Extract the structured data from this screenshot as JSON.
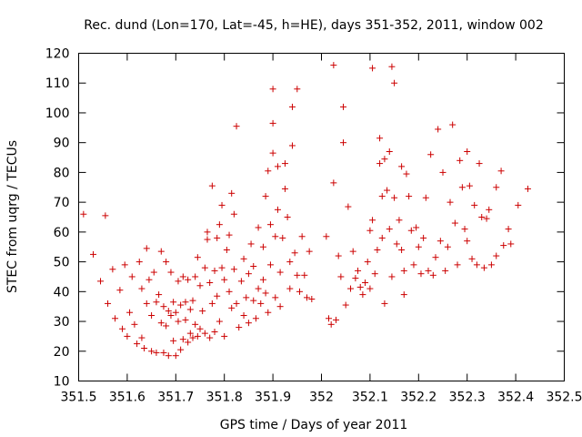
{
  "chart_data": {
    "type": "scatter",
    "title": "Rec. dund (Lon=170, Lat=-45, h=HE), days 351-352, 2011, window 002",
    "xlabel": "GPS time / Days of year 2011",
    "ylabel": "STEC from uqrg / TECUs",
    "xlim": [
      351.5,
      352.5
    ],
    "ylim": [
      10,
      120
    ],
    "xticks": [
      "351.5",
      "351.6",
      "351.7",
      "351.8",
      "351.9",
      "352",
      "352.1",
      "352.2",
      "352.3",
      "352.4",
      "352.5"
    ],
    "yticks": [
      "10",
      "20",
      "30",
      "40",
      "50",
      "60",
      "70",
      "80",
      "90",
      "100",
      "110",
      "120"
    ],
    "marker": "+",
    "color": "#cc0000",
    "grid": false,
    "legend": "none",
    "points": [
      [
        351.51,
        66
      ],
      [
        351.53,
        52.5
      ],
      [
        351.545,
        43.5
      ],
      [
        351.555,
        65.5
      ],
      [
        351.56,
        36
      ],
      [
        351.57,
        47.5
      ],
      [
        351.575,
        31
      ],
      [
        351.585,
        40.5
      ],
      [
        351.59,
        27.5
      ],
      [
        351.595,
        49
      ],
      [
        351.6,
        25
      ],
      [
        351.605,
        33
      ],
      [
        351.61,
        45
      ],
      [
        351.615,
        29
      ],
      [
        351.62,
        22.5
      ],
      [
        351.625,
        50
      ],
      [
        351.63,
        24.5
      ],
      [
        351.63,
        41
      ],
      [
        351.635,
        21
      ],
      [
        351.64,
        36
      ],
      [
        351.64,
        54.5
      ],
      [
        351.645,
        44
      ],
      [
        351.65,
        20
      ],
      [
        351.65,
        32
      ],
      [
        351.655,
        46.5
      ],
      [
        351.66,
        19.5
      ],
      [
        351.66,
        36.5
      ],
      [
        351.665,
        39
      ],
      [
        351.67,
        29.5
      ],
      [
        351.67,
        53.5
      ],
      [
        351.675,
        19.5
      ],
      [
        351.675,
        35
      ],
      [
        351.68,
        28.5
      ],
      [
        351.68,
        50
      ],
      [
        351.685,
        18.5
      ],
      [
        351.685,
        33.5
      ],
      [
        351.69,
        32
      ],
      [
        351.69,
        46.5
      ],
      [
        351.695,
        23.5
      ],
      [
        351.695,
        36.5
      ],
      [
        351.7,
        18.5
      ],
      [
        351.7,
        33
      ],
      [
        351.705,
        43.5
      ],
      [
        351.705,
        30
      ],
      [
        351.71,
        20.5
      ],
      [
        351.71,
        35.5
      ],
      [
        351.715,
        24
      ],
      [
        351.715,
        45
      ],
      [
        351.72,
        30.5
      ],
      [
        351.72,
        36.5
      ],
      [
        351.725,
        23
      ],
      [
        351.725,
        44
      ],
      [
        351.73,
        26
      ],
      [
        351.73,
        34
      ],
      [
        351.735,
        24.5
      ],
      [
        351.735,
        37
      ],
      [
        351.74,
        29
      ],
      [
        351.74,
        45
      ],
      [
        351.745,
        25
      ],
      [
        351.745,
        51.5
      ],
      [
        351.75,
        27.5
      ],
      [
        351.75,
        42
      ],
      [
        351.755,
        33.5
      ],
      [
        351.76,
        26
      ],
      [
        351.76,
        48
      ],
      [
        351.765,
        60
      ],
      [
        351.765,
        57.5
      ],
      [
        351.77,
        24.5
      ],
      [
        351.77,
        43
      ],
      [
        351.775,
        36
      ],
      [
        351.775,
        75.5
      ],
      [
        351.78,
        26.5
      ],
      [
        351.78,
        47
      ],
      [
        351.785,
        38.5
      ],
      [
        351.785,
        58
      ],
      [
        351.79,
        30
      ],
      [
        351.79,
        62.5
      ],
      [
        351.795,
        48
      ],
      [
        351.795,
        69
      ],
      [
        351.8,
        44
      ],
      [
        351.8,
        25
      ],
      [
        351.805,
        54
      ],
      [
        351.81,
        40
      ],
      [
        351.81,
        59
      ],
      [
        351.815,
        34.5
      ],
      [
        351.815,
        73
      ],
      [
        351.82,
        47.5
      ],
      [
        351.82,
        66
      ],
      [
        351.825,
        95.5
      ],
      [
        351.825,
        36
      ],
      [
        351.83,
        28
      ],
      [
        351.835,
        43.5
      ],
      [
        351.84,
        51
      ],
      [
        351.84,
        32
      ],
      [
        351.845,
        38
      ],
      [
        351.85,
        46
      ],
      [
        351.85,
        29.5
      ],
      [
        351.855,
        56
      ],
      [
        351.86,
        37
      ],
      [
        351.86,
        48.5
      ],
      [
        351.865,
        31
      ],
      [
        351.87,
        41
      ],
      [
        351.87,
        61.5
      ],
      [
        351.875,
        36
      ],
      [
        351.88,
        44
      ],
      [
        351.88,
        55
      ],
      [
        351.885,
        72
      ],
      [
        351.885,
        39.5
      ],
      [
        351.89,
        33
      ],
      [
        351.89,
        80.5
      ],
      [
        351.895,
        62.5
      ],
      [
        351.895,
        49
      ],
      [
        351.9,
        108
      ],
      [
        351.9,
        96.5
      ],
      [
        351.9,
        86.5
      ],
      [
        351.905,
        58.5
      ],
      [
        351.905,
        38
      ],
      [
        351.91,
        67.5
      ],
      [
        351.91,
        82
      ],
      [
        351.915,
        46.5
      ],
      [
        351.915,
        35
      ],
      [
        351.92,
        58
      ],
      [
        351.925,
        83
      ],
      [
        351.925,
        74.5
      ],
      [
        351.93,
        65
      ],
      [
        351.935,
        50
      ],
      [
        351.935,
        41
      ],
      [
        351.94,
        102
      ],
      [
        351.94,
        89
      ],
      [
        351.945,
        53
      ],
      [
        351.95,
        108
      ],
      [
        351.95,
        45.5
      ],
      [
        351.955,
        40
      ],
      [
        351.96,
        58.5
      ],
      [
        351.965,
        45.5
      ],
      [
        351.97,
        38
      ],
      [
        351.975,
        53.5
      ],
      [
        351.98,
        37.5
      ],
      [
        352.01,
        58.5
      ],
      [
        352.015,
        31
      ],
      [
        352.02,
        29
      ],
      [
        352.025,
        116
      ],
      [
        352.025,
        76.5
      ],
      [
        352.03,
        30.5
      ],
      [
        352.035,
        52
      ],
      [
        352.04,
        45
      ],
      [
        352.045,
        102
      ],
      [
        352.045,
        90
      ],
      [
        352.05,
        35.5
      ],
      [
        352.055,
        68.5
      ],
      [
        352.06,
        41
      ],
      [
        352.065,
        53.5
      ],
      [
        352.07,
        44.5
      ],
      [
        352.075,
        47
      ],
      [
        352.08,
        41.5
      ],
      [
        352.085,
        39
      ],
      [
        352.09,
        43
      ],
      [
        352.095,
        50
      ],
      [
        352.1,
        41
      ],
      [
        352.1,
        60.5
      ],
      [
        352.105,
        115
      ],
      [
        352.105,
        64
      ],
      [
        352.11,
        46
      ],
      [
        352.115,
        54
      ],
      [
        352.12,
        91.5
      ],
      [
        352.12,
        83
      ],
      [
        352.125,
        72
      ],
      [
        352.125,
        58
      ],
      [
        352.13,
        84.5
      ],
      [
        352.13,
        36
      ],
      [
        352.135,
        74
      ],
      [
        352.14,
        61
      ],
      [
        352.14,
        87
      ],
      [
        352.145,
        115.5
      ],
      [
        352.145,
        45
      ],
      [
        352.15,
        110
      ],
      [
        352.15,
        71.5
      ],
      [
        352.155,
        56
      ],
      [
        352.16,
        64
      ],
      [
        352.165,
        82
      ],
      [
        352.165,
        54
      ],
      [
        352.17,
        47
      ],
      [
        352.17,
        39
      ],
      [
        352.175,
        79.5
      ],
      [
        352.18,
        72
      ],
      [
        352.185,
        60.5
      ],
      [
        352.19,
        49
      ],
      [
        352.195,
        61.5
      ],
      [
        352.2,
        55
      ],
      [
        352.205,
        46
      ],
      [
        352.21,
        58
      ],
      [
        352.215,
        71.5
      ],
      [
        352.22,
        47
      ],
      [
        352.225,
        86
      ],
      [
        352.23,
        45.5
      ],
      [
        352.235,
        51.5
      ],
      [
        352.24,
        94.5
      ],
      [
        352.245,
        57
      ],
      [
        352.25,
        80
      ],
      [
        352.255,
        47
      ],
      [
        352.26,
        55
      ],
      [
        352.265,
        70
      ],
      [
        352.27,
        96
      ],
      [
        352.275,
        63
      ],
      [
        352.28,
        49
      ],
      [
        352.285,
        84
      ],
      [
        352.29,
        75
      ],
      [
        352.295,
        61
      ],
      [
        352.3,
        87
      ],
      [
        352.3,
        57
      ],
      [
        352.305,
        75.5
      ],
      [
        352.31,
        51
      ],
      [
        352.315,
        69
      ],
      [
        352.32,
        49
      ],
      [
        352.325,
        83
      ],
      [
        352.33,
        65
      ],
      [
        352.335,
        48
      ],
      [
        352.34,
        64.5
      ],
      [
        352.345,
        67.5
      ],
      [
        352.35,
        49
      ],
      [
        352.36,
        75
      ],
      [
        352.36,
        52
      ],
      [
        352.37,
        80.5
      ],
      [
        352.375,
        55.5
      ],
      [
        352.385,
        61
      ],
      [
        352.39,
        56
      ],
      [
        352.405,
        69
      ],
      [
        352.425,
        74.5
      ]
    ]
  }
}
